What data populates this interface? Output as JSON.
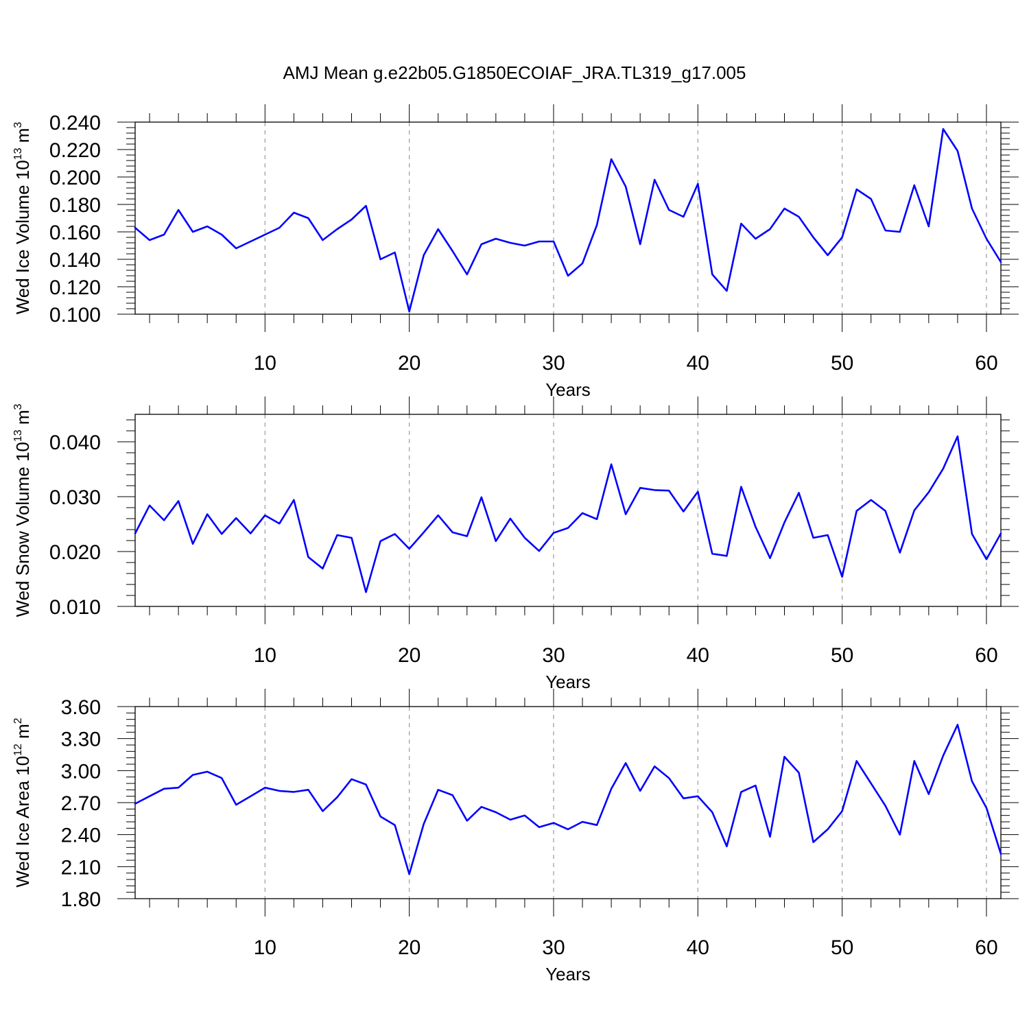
{
  "title": "AMJ Mean g.e22b05.G1850ECOIAF_JRA.TL319_g17.005",
  "chart_data": [
    {
      "type": "line",
      "ylabel": {
        "text": "Wed Ice Volume 10",
        "sup": "13",
        "unit": " m",
        "unit_sup": "3"
      },
      "xlabel": "Years",
      "xlim": [
        1,
        61
      ],
      "ylim": [
        0.1,
        0.24
      ],
      "xticks": [
        10,
        20,
        30,
        40,
        50,
        60
      ],
      "yticks": [
        0.1,
        0.12,
        0.14,
        0.16,
        0.18,
        0.2,
        0.22,
        0.24
      ],
      "ytick_labels": [
        "0.100",
        "0.120",
        "0.140",
        "0.160",
        "0.180",
        "0.200",
        "0.220",
        "0.240"
      ],
      "x_gridlines": [
        10,
        20,
        30,
        40,
        50,
        60
      ],
      "y_gridlines": false,
      "series": [
        {
          "color": "#0000ff",
          "x": [
            1,
            2,
            3,
            4,
            5,
            6,
            7,
            8,
            9,
            10,
            11,
            12,
            13,
            14,
            15,
            16,
            17,
            18,
            19,
            20,
            21,
            22,
            23,
            24,
            25,
            26,
            27,
            28,
            29,
            30,
            31,
            32,
            33,
            34,
            35,
            36,
            37,
            38,
            39,
            40,
            41,
            42,
            43,
            44,
            45,
            46,
            47,
            48,
            49,
            50,
            51,
            52,
            53,
            54,
            55,
            56,
            57,
            58,
            59,
            60,
            61
          ],
          "values": [
            0.163,
            0.154,
            0.158,
            0.176,
            0.16,
            0.164,
            0.158,
            0.148,
            0.153,
            0.158,
            0.163,
            0.174,
            0.17,
            0.154,
            0.162,
            0.169,
            0.179,
            0.14,
            0.145,
            0.102,
            0.143,
            0.162,
            0.146,
            0.129,
            0.151,
            0.155,
            0.152,
            0.15,
            0.153,
            0.153,
            0.128,
            0.137,
            0.165,
            0.213,
            0.193,
            0.151,
            0.198,
            0.176,
            0.171,
            0.195,
            0.129,
            0.117,
            0.166,
            0.155,
            0.162,
            0.177,
            0.171,
            0.156,
            0.143,
            0.156,
            0.191,
            0.184,
            0.161,
            0.16,
            0.194,
            0.164,
            0.235,
            0.219,
            0.177,
            0.155,
            0.138
          ]
        }
      ]
    },
    {
      "type": "line",
      "ylabel": {
        "text": "Wed Snow Volume 10",
        "sup": "13",
        "unit": " m",
        "unit_sup": "3"
      },
      "xlabel": "Years",
      "xlim": [
        1,
        61
      ],
      "ylim": [
        0.01,
        0.045
      ],
      "xticks": [
        10,
        20,
        30,
        40,
        50,
        60
      ],
      "yticks": [
        0.01,
        0.02,
        0.03,
        0.04
      ],
      "ytick_labels": [
        "0.010",
        "0.020",
        "0.030",
        "0.040"
      ],
      "x_gridlines": [
        10,
        20,
        30,
        40,
        50,
        60
      ],
      "y_gridlines": false,
      "series": [
        {
          "color": "#0000ff",
          "x": [
            1,
            2,
            3,
            4,
            5,
            6,
            7,
            8,
            9,
            10,
            11,
            12,
            13,
            14,
            15,
            16,
            17,
            18,
            19,
            20,
            21,
            22,
            23,
            24,
            25,
            26,
            27,
            28,
            29,
            30,
            31,
            32,
            33,
            34,
            35,
            36,
            37,
            38,
            39,
            40,
            41,
            42,
            43,
            44,
            45,
            46,
            47,
            48,
            49,
            50,
            51,
            52,
            53,
            54,
            55,
            56,
            57,
            58,
            59,
            60,
            61
          ],
          "values": [
            0.0233,
            0.0284,
            0.0257,
            0.0292,
            0.0214,
            0.0268,
            0.0232,
            0.0261,
            0.0233,
            0.0266,
            0.0251,
            0.0294,
            0.019,
            0.0169,
            0.023,
            0.0225,
            0.0126,
            0.0219,
            0.0232,
            0.0205,
            0.0235,
            0.0266,
            0.0235,
            0.0228,
            0.0299,
            0.0219,
            0.026,
            0.0225,
            0.0201,
            0.0234,
            0.0243,
            0.027,
            0.0259,
            0.0359,
            0.0268,
            0.0316,
            0.0312,
            0.0311,
            0.0273,
            0.0309,
            0.0196,
            0.0192,
            0.0318,
            0.0245,
            0.0188,
            0.0253,
            0.0307,
            0.0225,
            0.023,
            0.0154,
            0.0274,
            0.0294,
            0.0274,
            0.0198,
            0.0275,
            0.0308,
            0.0351,
            0.041,
            0.0232,
            0.0186,
            0.0233
          ]
        }
      ]
    },
    {
      "type": "line",
      "ylabel": {
        "text": "Wed Ice Area 10",
        "sup": "12",
        "unit": " m",
        "unit_sup": "2"
      },
      "xlabel": "Years",
      "xlim": [
        1,
        61
      ],
      "ylim": [
        1.8,
        3.6
      ],
      "xticks": [
        10,
        20,
        30,
        40,
        50,
        60
      ],
      "yticks": [
        1.8,
        2.1,
        2.4,
        2.7,
        3.0,
        3.3,
        3.6
      ],
      "ytick_labels": [
        "1.80",
        "2.10",
        "2.40",
        "2.70",
        "3.00",
        "3.30",
        "3.60"
      ],
      "x_gridlines": [
        10,
        20,
        30,
        40,
        50,
        60
      ],
      "y_gridlines": false,
      "series": [
        {
          "color": "#0000ff",
          "x": [
            1,
            2,
            3,
            4,
            5,
            6,
            7,
            8,
            9,
            10,
            11,
            12,
            13,
            14,
            15,
            16,
            17,
            18,
            19,
            20,
            21,
            22,
            23,
            24,
            25,
            26,
            27,
            28,
            29,
            30,
            31,
            32,
            33,
            34,
            35,
            36,
            37,
            38,
            39,
            40,
            41,
            42,
            43,
            44,
            45,
            46,
            47,
            48,
            49,
            50,
            51,
            52,
            53,
            54,
            55,
            56,
            57,
            58,
            59,
            60,
            61
          ],
          "values": [
            2.69,
            2.76,
            2.83,
            2.84,
            2.96,
            2.99,
            2.93,
            2.68,
            2.76,
            2.84,
            2.81,
            2.8,
            2.82,
            2.62,
            2.75,
            2.92,
            2.87,
            2.57,
            2.49,
            2.03,
            2.5,
            2.82,
            2.77,
            2.53,
            2.66,
            2.61,
            2.54,
            2.58,
            2.47,
            2.51,
            2.45,
            2.52,
            2.49,
            2.83,
            3.07,
            2.81,
            3.04,
            2.93,
            2.74,
            2.76,
            2.61,
            2.29,
            2.8,
            2.86,
            2.38,
            3.13,
            2.98,
            2.33,
            2.45,
            2.62,
            3.09,
            2.88,
            2.67,
            2.4,
            3.09,
            2.78,
            3.14,
            3.43,
            2.9,
            2.65,
            2.22
          ]
        }
      ]
    }
  ]
}
